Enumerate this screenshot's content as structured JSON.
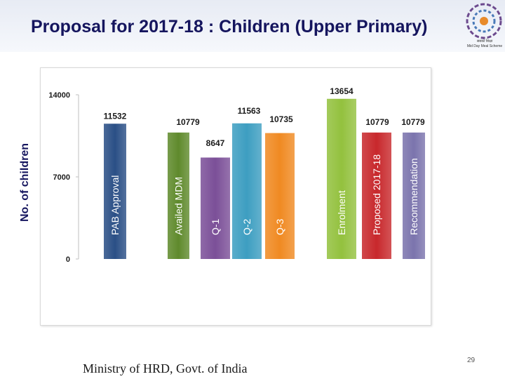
{
  "slide": {
    "title": "Proposal for 2017-18 : Children (Upper Primary)",
    "footer": "Ministry of HRD, Govt. of India",
    "page_number": "29",
    "logo_caption_line1": "सबको शिक्षा",
    "logo_caption_line2": "Mid Day Meal Scheme"
  },
  "chart_data": {
    "type": "bar",
    "title": "",
    "xlabel": "",
    "ylabel": "No. of children",
    "ylim": [
      0,
      14000
    ],
    "yticks": [
      0,
      7000,
      14000
    ],
    "grid": false,
    "legend": "none",
    "categories": [
      "PAB Approval",
      "Availed MDM",
      "Q-1",
      "Q-2",
      "Q-3",
      "Enrolment",
      "Proposed 2017-18",
      "Recommendation"
    ],
    "values": [
      11532,
      10779,
      8647,
      11563,
      10735,
      13654,
      10779,
      10779
    ],
    "colors": [
      "#2a4f86",
      "#5f8a2c",
      "#7b4f98",
      "#3d9ec1",
      "#f08a22",
      "#93c13e",
      "#c8282c",
      "#7b74ad"
    ]
  }
}
